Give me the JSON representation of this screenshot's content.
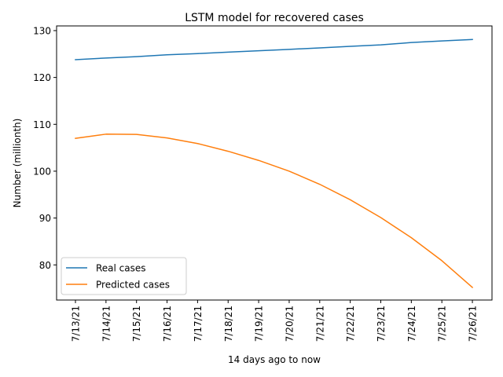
{
  "chart_data": {
    "type": "line",
    "title": "LSTM model for recovered cases",
    "xlabel": "14 days ago to now",
    "ylabel": "Number (millionth)",
    "categories": [
      "7/13/21",
      "7/14/21",
      "7/15/21",
      "7/16/21",
      "7/17/21",
      "7/18/21",
      "7/19/21",
      "7/20/21",
      "7/21/21",
      "7/22/21",
      "7/23/21",
      "7/24/21",
      "7/25/21",
      "7/26/21"
    ],
    "yticks": [
      80,
      90,
      100,
      110,
      120,
      130
    ],
    "ylim": [
      72.5,
      131.0
    ],
    "grid": false,
    "legend_position": "lower-left",
    "series": [
      {
        "name": "Real cases",
        "color": "#1f77b4",
        "values": [
          123.8,
          124.15,
          124.45,
          124.85,
          125.1,
          125.4,
          125.7,
          126.0,
          126.3,
          126.65,
          126.95,
          127.45,
          127.8,
          128.1
        ]
      },
      {
        "name": "Predicted cases",
        "color": "#ff7f0e",
        "values": [
          107.0,
          107.9,
          107.85,
          107.1,
          105.9,
          104.25,
          102.3,
          100.0,
          97.2,
          93.9,
          90.1,
          85.8,
          80.9,
          75.2
        ]
      }
    ]
  }
}
